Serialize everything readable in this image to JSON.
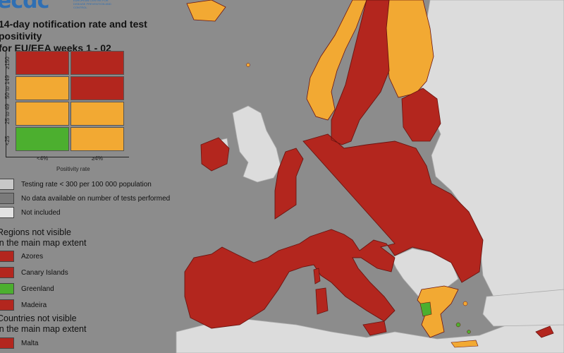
{
  "header": {
    "logo_text": "ecdc",
    "logo_sub": "EUROPEAN CENTRE FOR DISEASE PREVENTION AND CONTROL",
    "title_line1": "14-day notification rate and test positivity",
    "title_line2": "for EU/EEA weeks 1 - 02"
  },
  "matrix": {
    "y_ticks": [
      "≥150",
      "50 to 149",
      "25 to 49",
      "<25"
    ],
    "x_ticks": [
      "<4%",
      "≥4%"
    ],
    "x_label": "Positivity rate",
    "cells": [
      [
        "#b3261e",
        "#b3261e"
      ],
      [
        "#f2a933",
        "#b3261e"
      ],
      [
        "#f2a933",
        "#f2a933"
      ],
      [
        "#4caf2f",
        "#f2a933"
      ]
    ]
  },
  "legend": {
    "items": [
      {
        "label": "Testing rate < 300 per 100 000 population",
        "color": "#c8c8c8"
      },
      {
        "label": "No data available on number of tests performed",
        "color": "#7a7a7a"
      },
      {
        "label": "Not included",
        "color": "#e2e2e2"
      }
    ]
  },
  "regions": {
    "title_line1": "Regions not visible",
    "title_line2": "in the main map extent",
    "items": [
      {
        "label": "Azores",
        "color": "#b3261e"
      },
      {
        "label": "Canary Islands",
        "color": "#b3261e"
      },
      {
        "label": "Greenland",
        "color": "#4caf2f"
      },
      {
        "label": "Madeira",
        "color": "#b3261e"
      }
    ]
  },
  "countries": {
    "title_line1": "Countries not visible",
    "title_line2": "in the main map extent",
    "items": [
      {
        "label": "Malta",
        "color": "#b3261e"
      }
    ]
  },
  "colors": {
    "red": "#b3261e",
    "orange": "#f2a933",
    "green": "#4caf2f",
    "grey_land": "#dcdcdc",
    "sea": "#8c8c8c"
  }
}
